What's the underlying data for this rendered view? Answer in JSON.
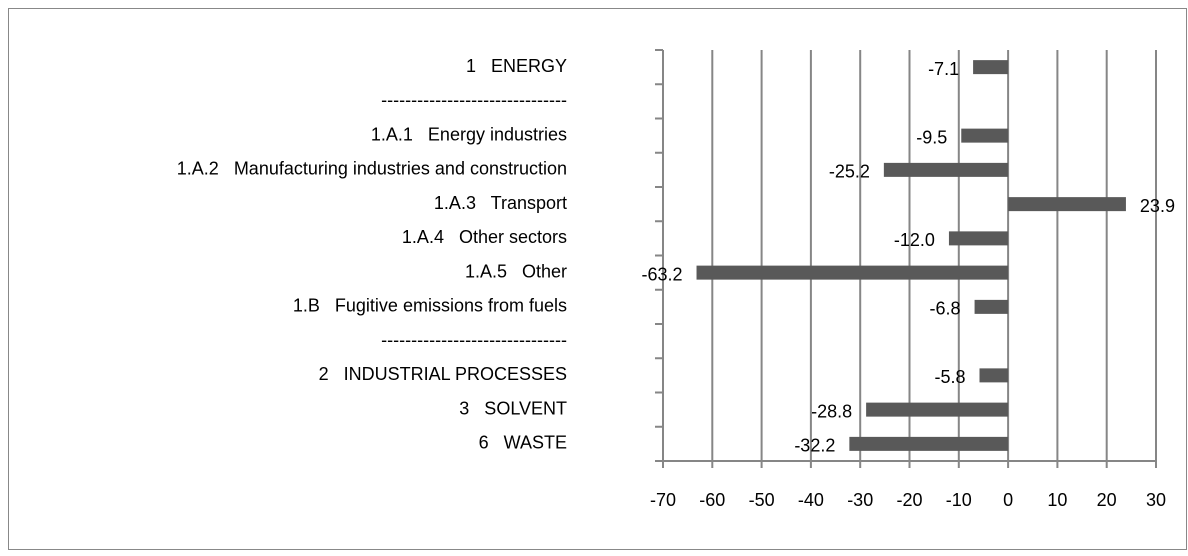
{
  "chart_data": {
    "type": "barh",
    "categories": [
      "1   ENERGY",
      "-------------------------------",
      "1.A.1   Energy industries",
      "1.A.2   Manufacturing industries and construction",
      "1.A.3   Transport",
      "1.A.4   Other sectors",
      "1.A.5   Other",
      "1.B   Fugitive emissions from fuels",
      "-------------------------------",
      "2   INDUSTRIAL PROCESSES",
      "3   SOLVENT",
      "6   WASTE"
    ],
    "values": [
      -7.1,
      null,
      -9.5,
      -25.2,
      23.9,
      -12.0,
      -63.2,
      -6.8,
      null,
      -5.8,
      -28.8,
      -32.2
    ],
    "value_labels": [
      "-7.1",
      null,
      "-9.5",
      "-25.2",
      "23.9",
      "-12.0",
      "-63.2",
      "-6.8",
      null,
      "-5.8",
      "-28.8",
      "-32.2"
    ],
    "color": "#595959",
    "xlim": [
      -70,
      30
    ],
    "xticks": [
      -70,
      -60,
      -50,
      -40,
      -30,
      -20,
      -10,
      0,
      10,
      20,
      30
    ],
    "grid": true
  }
}
